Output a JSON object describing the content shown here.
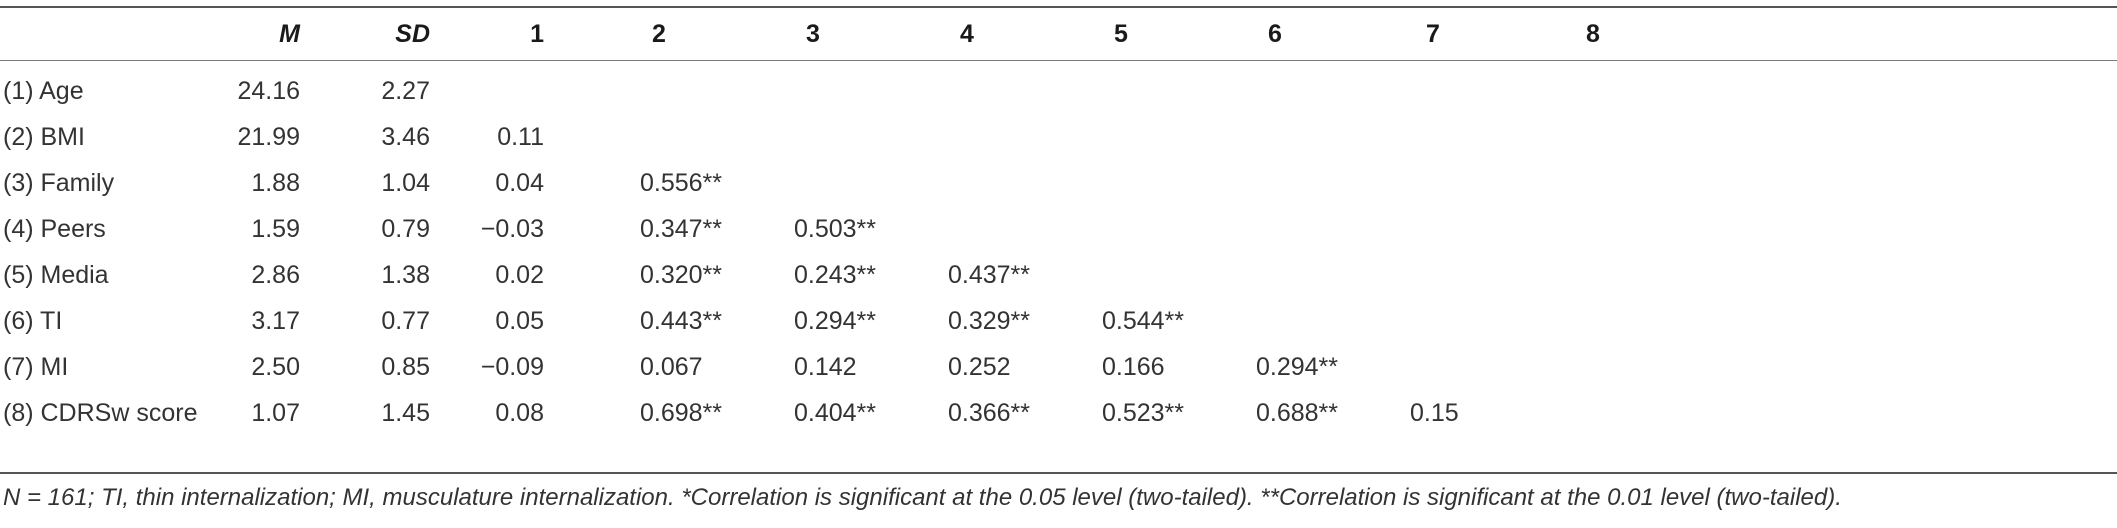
{
  "table": {
    "headers": {
      "label": "",
      "m": "M",
      "sd": "SD",
      "c1": "1",
      "c2": "2",
      "c3": "3",
      "c4": "4",
      "c5": "5",
      "c6": "6",
      "c7": "7",
      "c8": "8"
    },
    "rows": [
      {
        "label": "(1) Age",
        "m": "24.16",
        "sd": "2.27",
        "c1": "",
        "c2": "",
        "c3": "",
        "c4": "",
        "c5": "",
        "c6": "",
        "c7": "",
        "c8": ""
      },
      {
        "label": "(2) BMI",
        "m": "21.99",
        "sd": "3.46",
        "c1": "0.11",
        "c2": "",
        "c3": "",
        "c4": "",
        "c5": "",
        "c6": "",
        "c7": "",
        "c8": ""
      },
      {
        "label": "(3) Family",
        "m": "1.88",
        "sd": "1.04",
        "c1": "0.04",
        "c2": "0.556**",
        "c3": "",
        "c4": "",
        "c5": "",
        "c6": "",
        "c7": "",
        "c8": ""
      },
      {
        "label": "(4) Peers",
        "m": "1.59",
        "sd": "0.79",
        "c1": "−0.03",
        "c2": "0.347**",
        "c3": "0.503**",
        "c4": "",
        "c5": "",
        "c6": "",
        "c7": "",
        "c8": ""
      },
      {
        "label": "(5) Media",
        "m": "2.86",
        "sd": "1.38",
        "c1": "0.02",
        "c2": "0.320**",
        "c3": "0.243**",
        "c4": "0.437**",
        "c5": "",
        "c6": "",
        "c7": "",
        "c8": ""
      },
      {
        "label": "(6) TI",
        "m": "3.17",
        "sd": "0.77",
        "c1": "0.05",
        "c2": "0.443**",
        "c3": "0.294**",
        "c4": "0.329**",
        "c5": "0.544**",
        "c6": "",
        "c7": "",
        "c8": ""
      },
      {
        "label": "(7) MI",
        "m": "2.50",
        "sd": "0.85",
        "c1": "−0.09",
        "c2": "0.067",
        "c3": "0.142",
        "c4": "0.252",
        "c5": "0.166",
        "c6": "0.294**",
        "c7": "",
        "c8": ""
      },
      {
        "label": "(8) CDRSw score",
        "m": "1.07",
        "sd": "1.45",
        "c1": "0.08",
        "c2": "0.698**",
        "c3": "0.404**",
        "c4": "0.366**",
        "c5": "0.523**",
        "c6": "0.688**",
        "c7": "0.15",
        "c8": ""
      }
    ]
  },
  "note": "N = 161; TI, thin internalization; MI, musculature internalization. *Correlation is significant at the 0.05 level (two-tailed). **Correlation is significant at the 0.01 level (two-tailed)."
}
